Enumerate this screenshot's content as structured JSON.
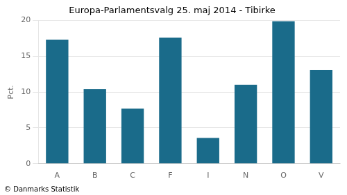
{
  "chart_data": {
    "type": "bar",
    "title": "Europa-Parlamentsvalg 25. maj 2014 - Tibirke",
    "categories": [
      "A",
      "B",
      "C",
      "F",
      "I",
      "N",
      "O",
      "V"
    ],
    "values": [
      17.3,
      10.4,
      7.7,
      17.6,
      3.6,
      11.0,
      19.9,
      13.1
    ],
    "color": "#1a6b8a",
    "ylabel": "Pct.",
    "ylim": [
      0,
      20
    ],
    "yticks": [
      0,
      5,
      10,
      15,
      20
    ],
    "grid": true,
    "annotations": [
      "© Danmarks Statistik"
    ]
  }
}
